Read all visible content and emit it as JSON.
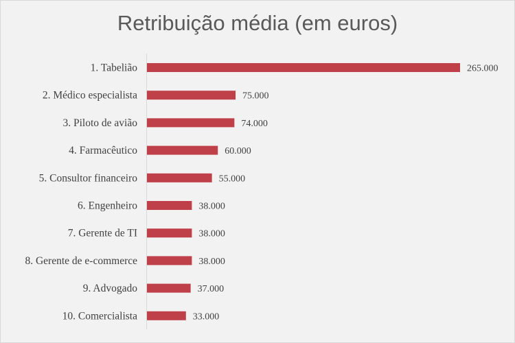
{
  "chart_data": {
    "type": "bar",
    "orientation": "horizontal",
    "title": "Retribuição média (em euros)",
    "categories": [
      "1. Tabelião",
      "2. Médico especialista",
      "3. Piloto de avião",
      "4. Farmacêutico",
      "5. Consultor financeiro",
      "6. Engenheiro",
      "7. Gerente de TI",
      "8. Gerente de e-commerce",
      "9. Advogado",
      "10. Comercialista"
    ],
    "values": [
      265000,
      75000,
      74000,
      60000,
      55000,
      38000,
      38000,
      38000,
      37000,
      33000
    ],
    "value_labels": [
      "265.000",
      "75.000",
      "74.000",
      "60.000",
      "55.000",
      "38.000",
      "38.000",
      "38.000",
      "37.000",
      "33.000"
    ],
    "xlim": [
      0,
      265000
    ],
    "bar_color": "#c0404a",
    "grid": false,
    "legend": "none"
  }
}
